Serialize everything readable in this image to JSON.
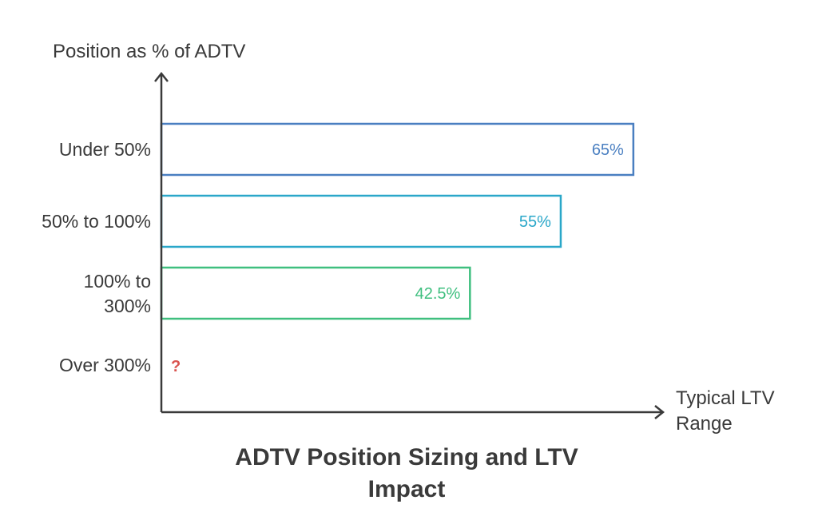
{
  "chart_data": {
    "type": "bar",
    "orientation": "horizontal",
    "title": "ADTV Position Sizing and LTV Impact",
    "ylabel": "Position as % of ADTV",
    "xlabel": "Typical LTV Range",
    "categories": [
      "Under 50%",
      "50% to 100%",
      "100% to 300%",
      "Over 300%"
    ],
    "values": [
      65,
      55,
      42.5,
      null
    ],
    "value_labels": [
      "65%",
      "55%",
      "42.5%",
      "?"
    ],
    "colors": [
      "#4a7fc1",
      "#2aa7c9",
      "#3fbf7f",
      "#d9534f"
    ],
    "grid": false
  }
}
